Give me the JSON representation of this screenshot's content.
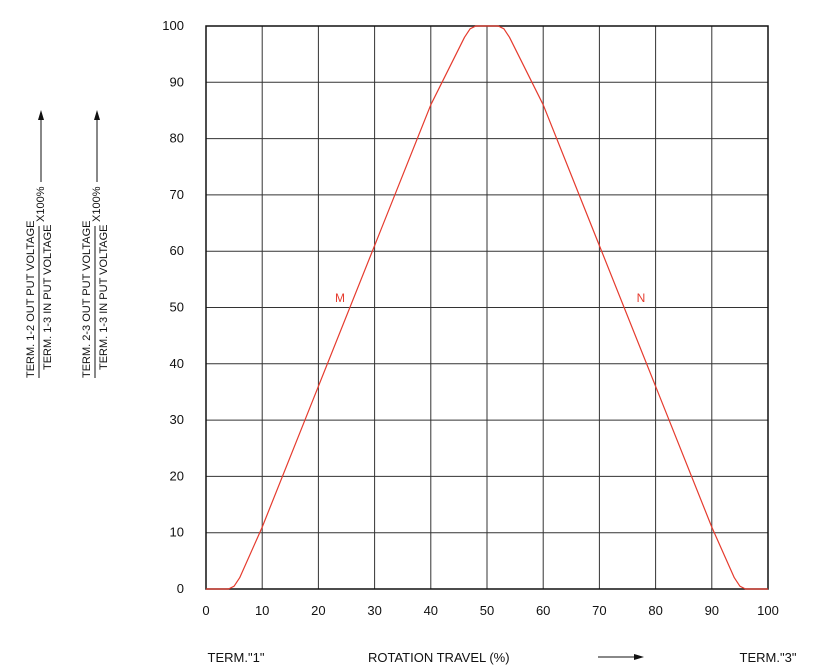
{
  "chart_data": {
    "type": "line",
    "x_ticks": [
      0,
      10,
      20,
      30,
      40,
      50,
      60,
      70,
      80,
      90,
      100
    ],
    "y_ticks": [
      0,
      10,
      20,
      30,
      40,
      50,
      60,
      70,
      80,
      90,
      100
    ],
    "xlim": [
      0,
      100
    ],
    "ylim": [
      0,
      100
    ],
    "grid": true,
    "xlabel": "ROTATION TRAVEL (%)",
    "left_end_label": "TERM.\"1\"",
    "right_end_label": "TERM.\"3\"",
    "ylabel_1": {
      "numerator": "TERM. 1-2 OUT PUT VOLTAGE",
      "denominator": "TERM. 1-3 IN PUT VOLTAGE",
      "factor": "X100%"
    },
    "ylabel_2": {
      "numerator": "TERM. 2-3 OUT PUT VOLTAGE",
      "denominator": "TERM. 1-3 IN PUT VOLTAGE",
      "factor": "X100%"
    },
    "curve_color": "#e53b2e",
    "series": [
      {
        "name": "M",
        "x": [
          0,
          4,
          5,
          6,
          10,
          20,
          30,
          40,
          46,
          47,
          48,
          50
        ],
        "y": [
          0,
          0,
          0.5,
          2,
          11,
          36,
          61,
          86,
          98,
          99.5,
          100,
          100
        ]
      },
      {
        "name": "N",
        "x": [
          50,
          52,
          53,
          54,
          60,
          70,
          80,
          90,
          94,
          95,
          96,
          100
        ],
        "y": [
          100,
          100,
          99.5,
          98,
          86,
          61,
          36,
          11,
          2,
          0.5,
          0,
          0
        ]
      }
    ]
  }
}
